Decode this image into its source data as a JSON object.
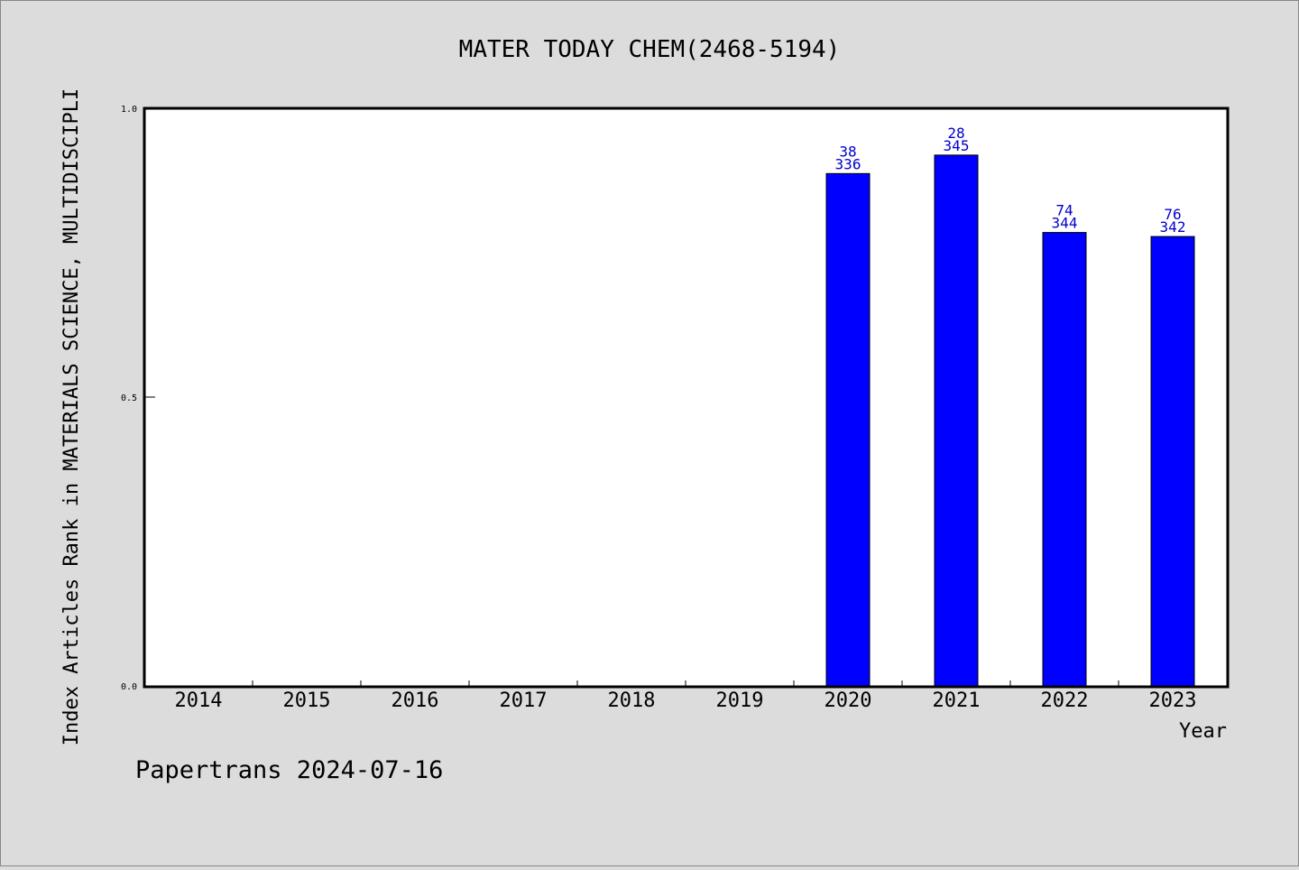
{
  "chart_data": {
    "type": "bar",
    "title": "MATER TODAY CHEM(2468-5194)",
    "xlabel": "Year",
    "ylabel": "Index Articles Rank in MATERIALS SCIENCE, MULTIDISCIPLI",
    "categories": [
      "2014",
      "2015",
      "2016",
      "2017",
      "2018",
      "2019",
      "2020",
      "2021",
      "2022",
      "2023"
    ],
    "values": [
      null,
      null,
      null,
      null,
      null,
      null,
      0.887,
      0.919,
      0.785,
      0.778
    ],
    "rank_labels": [
      "",
      "",
      "",
      "",
      "",
      "",
      "38",
      "28",
      "74",
      "76"
    ],
    "total_labels": [
      "",
      "",
      "",
      "",
      "",
      "",
      "336",
      "345",
      "344",
      "342"
    ],
    "ylim": [
      0,
      1.0
    ],
    "yticks": [
      "0.0",
      "0.5",
      "1.0"
    ],
    "grid": false,
    "bar_color": "#0000ff",
    "label_color": "#0000cc"
  },
  "footer": "Papertrans 2024-07-16"
}
